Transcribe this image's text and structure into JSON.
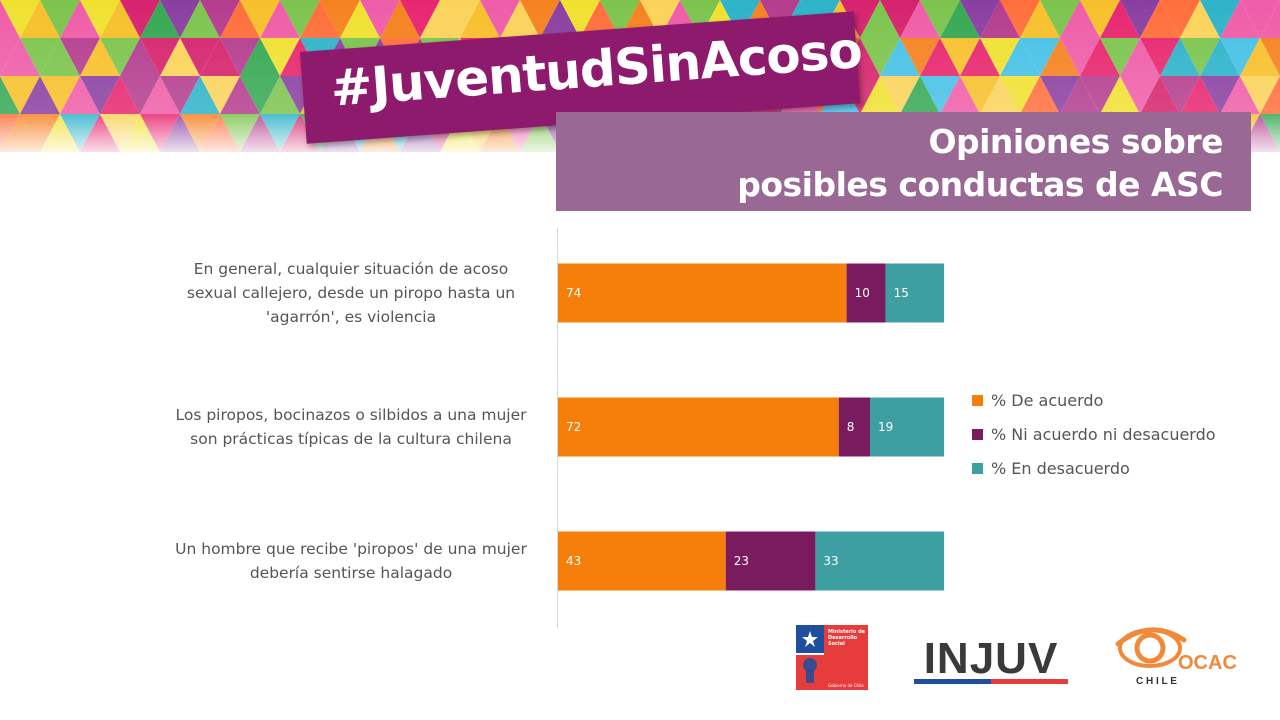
{
  "header": {
    "hashtag": "#JuventudSinAcoso",
    "title_line1": "Opiniones sobre",
    "title_line2": "posibles conductas de ASC"
  },
  "colors": {
    "de_acuerdo": "#f57f0a",
    "ni_acuerdo": "#7b1b5f",
    "en_desacuerdo": "#3e9fa3",
    "title_box": "#9a6895",
    "hashtag_box": "#8e1a6e"
  },
  "chart_data": {
    "type": "bar",
    "orientation": "horizontal",
    "stacked": true,
    "categories": [
      "En general, cualquier situación de acoso sexual callejero, desde un piropo hasta un 'agarrón', es violencia",
      "Los piropos, bocinazos o silbidos a una mujer son prácticas típicas de la cultura chilena",
      "Un hombre que recibe 'piropos' de una mujer debería sentirse halagado"
    ],
    "category_lines": [
      [
        "En general, cualquier situación de acoso",
        "sexual callejero, desde un piropo hasta un",
        "'agarrón', es violencia"
      ],
      [
        "Los piropos, bocinazos o silbidos a una mujer",
        "son prácticas típicas de la cultura chilena"
      ],
      [
        "Un hombre que recibe 'piropos' de una mujer",
        "debería sentirse halagado"
      ]
    ],
    "series": [
      {
        "name": "% De acuerdo",
        "values": [
          74,
          72,
          43
        ]
      },
      {
        "name": "% Ni acuerdo ni desacuerdo",
        "values": [
          10,
          8,
          23
        ]
      },
      {
        "name": "% En desacuerdo",
        "values": [
          15,
          19,
          33
        ]
      }
    ],
    "xlim": [
      0,
      100
    ],
    "data_labels": true,
    "grid": false,
    "legend_position": "right"
  },
  "logos": {
    "ministerio": "Ministerio de Desarrollo Social",
    "ministerio_sub": "Gobierno de Chile",
    "injuv": "INJUV",
    "ocac": "OCAC",
    "ocac_sub": "C H I L E"
  }
}
